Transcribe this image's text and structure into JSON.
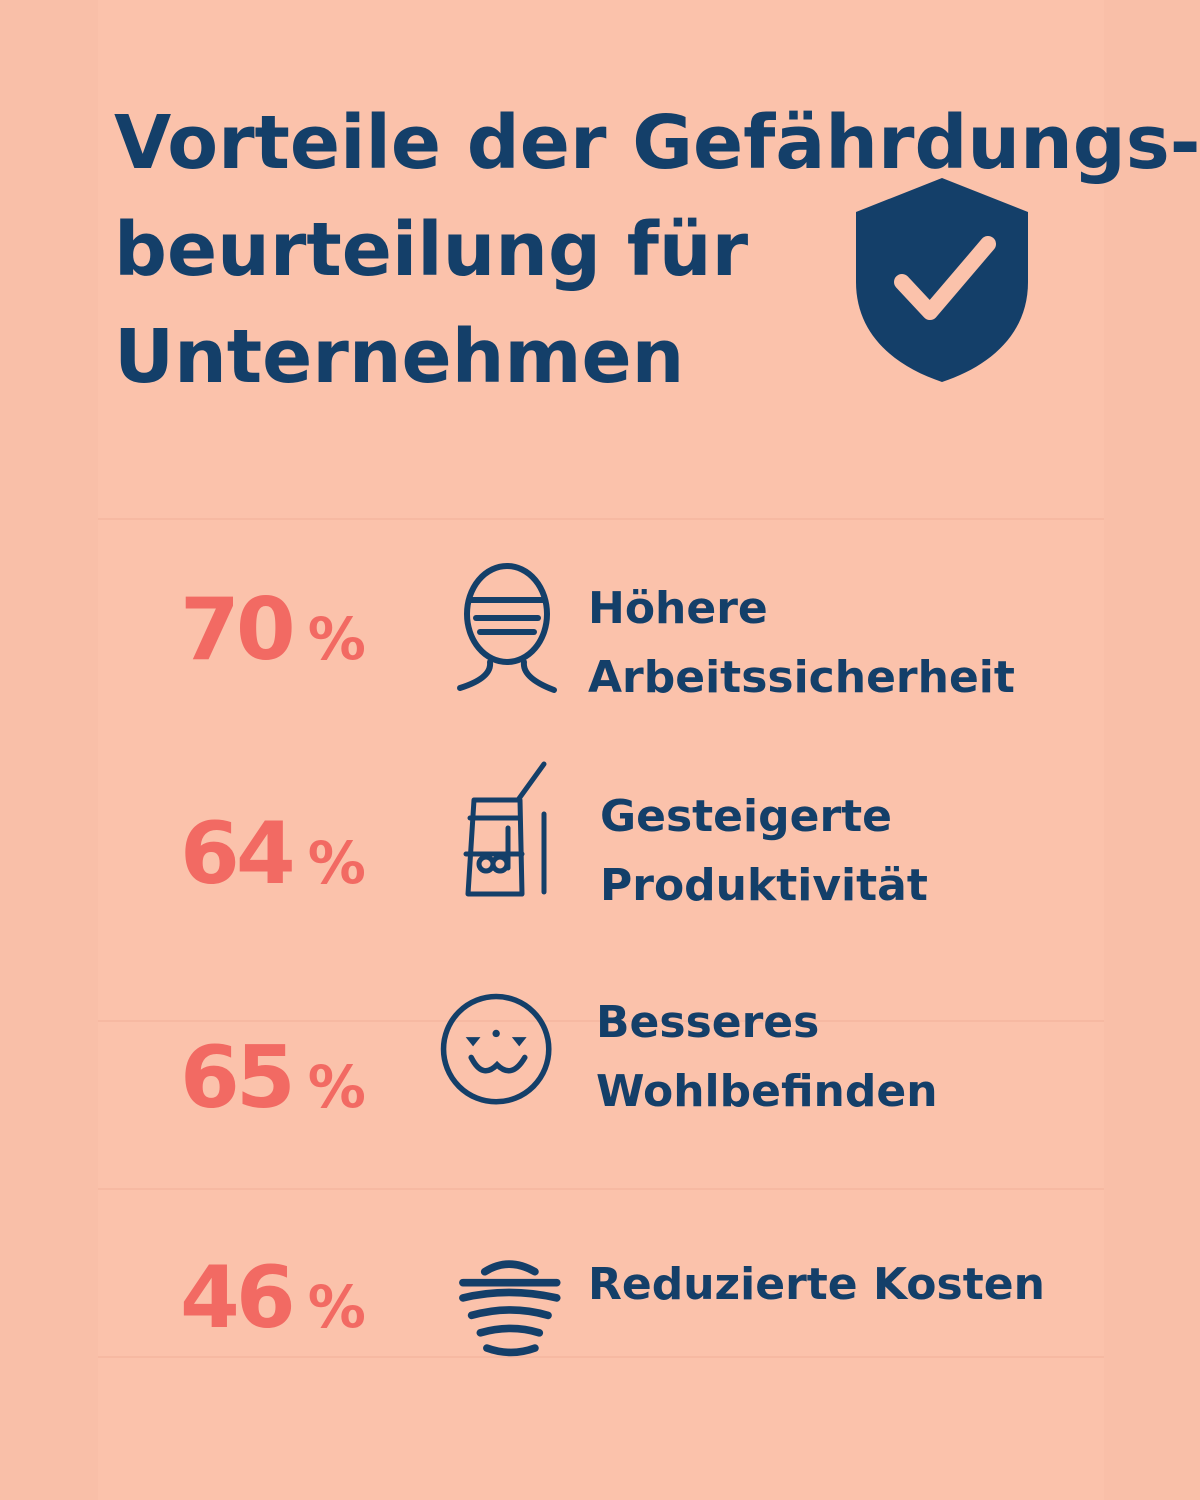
{
  "title": {
    "line1": "Vorteile der Gefährdungs-",
    "line2": "beurteilung für",
    "line3": "Unternehmen"
  },
  "badge_icon": "shield-check-icon",
  "colors": {
    "background": "#f9bfa8",
    "navy": "#143f69",
    "accent": "#f26a63"
  },
  "items": [
    {
      "percent": "70",
      "percent_sign": "%",
      "icon": "worker-helmet-icon",
      "label_line1": "Höhere",
      "label_line2": "Arbeitssicherheit"
    },
    {
      "percent": "64",
      "percent_sign": "%",
      "icon": "productivity-icon",
      "label_line1": "Gesteigerte",
      "label_line2": "Produktivität"
    },
    {
      "percent": "65",
      "percent_sign": "%",
      "icon": "smiley-face-icon",
      "label_line1": "Besseres",
      "label_line2": "Wohlbefinden"
    },
    {
      "percent": "46",
      "percent_sign": "%",
      "icon": "cost-stack-icon",
      "label_line1": "Reduzierte Kosten"
    }
  ]
}
